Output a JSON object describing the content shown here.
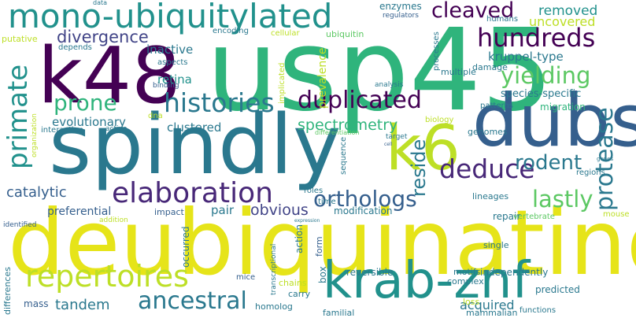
{
  "palette": {
    "yellow": "#e6e419",
    "lime": "#bddf26",
    "green": "#5cc863",
    "teal_green": "#2fb47c",
    "teal": "#21918c",
    "blue_teal": "#2a788e",
    "blue": "#355f8d",
    "indigo": "#414487",
    "purple": "#482878",
    "dark_purple": "#440154"
  },
  "words": {
    "usp45": "usp45",
    "deubiquinating": "deubiquinating",
    "spindly": "spindly",
    "k48": "k48",
    "dubs": "dubs",
    "k6": "k6",
    "krab_znf": "krab-znf",
    "mono_ubiquitylated": "mono-ubiquitylated",
    "primate": "primate",
    "repertoires": "repertoires",
    "elaboration": "elaboration",
    "histories": "histories",
    "deduce": "deduce",
    "hundreds": "hundreds",
    "duplicated": "duplicated",
    "ancestral": "ancestral",
    "cleaved": "cleaved",
    "yielding": "yielding",
    "lastly": "lastly",
    "orthologs": "orthologs",
    "protease": "protease",
    "prone": "prone",
    "divergence": "divergence",
    "rodent": "rodent",
    "reside": "reside",
    "spectrometry": "spectrometry",
    "obvious": "obvious",
    "catalytic": "catalytic",
    "tandem": "tandem",
    "removed": "removed",
    "uncovered": "uncovered",
    "kruppel_type": "kruppel-type",
    "inactive": "inactive",
    "retina": "retina",
    "evolutionary": "evolutionary",
    "clustered": "clustered",
    "preferential": "preferential",
    "acquired": "acquired",
    "pair": "pair",
    "prevalence": "prevalence",
    "species_specific": "species-specific",
    "enzymes": "enzymes",
    "regulators": "regulators",
    "humans": "humans",
    "ubiquitin": "ubiquitin",
    "processes": "processes",
    "multiple": "multiple",
    "damage": "damage",
    "analysis": "analysis",
    "patterns": "patterns",
    "migration": "migration",
    "biology": "biology",
    "genomes": "genomes",
    "genes": "genes",
    "regions": "regions",
    "mouse": "mouse",
    "repair": "repair",
    "vertebrate": "vertebrate",
    "lineages": "lineages",
    "modification": "modification",
    "impact": "impact",
    "time": "time",
    "roles": "roles",
    "sequence": "sequence",
    "target": "target",
    "cell": "cell",
    "differentiation": "differentiation",
    "data": "data",
    "putative": "putative",
    "depends": "depends",
    "encoding": "encoding",
    "cellular": "cellular",
    "aspects": "aspects",
    "binding": "binding",
    "implicated": "implicated",
    "dna": "dna",
    "active": "active",
    "interaction": "interaction",
    "organization": "organization",
    "identified": "identified",
    "addition": "addition",
    "expression": "expression",
    "occurred": "occurred",
    "action": "action",
    "transcriptional": "transcriptional",
    "mice": "mice",
    "box": "box",
    "form": "form",
    "reversible": "reversible",
    "chains": "chains",
    "carry": "carry",
    "homolog": "homolog",
    "familial": "familial",
    "motifs": "motifs",
    "independently": "independently",
    "single": "single",
    "complex": "complex",
    "predicted": "predicted",
    "loss": "loss",
    "mammalian": "mammalian",
    "functions": "functions",
    "differences": "differences",
    "mass": "mass"
  }
}
